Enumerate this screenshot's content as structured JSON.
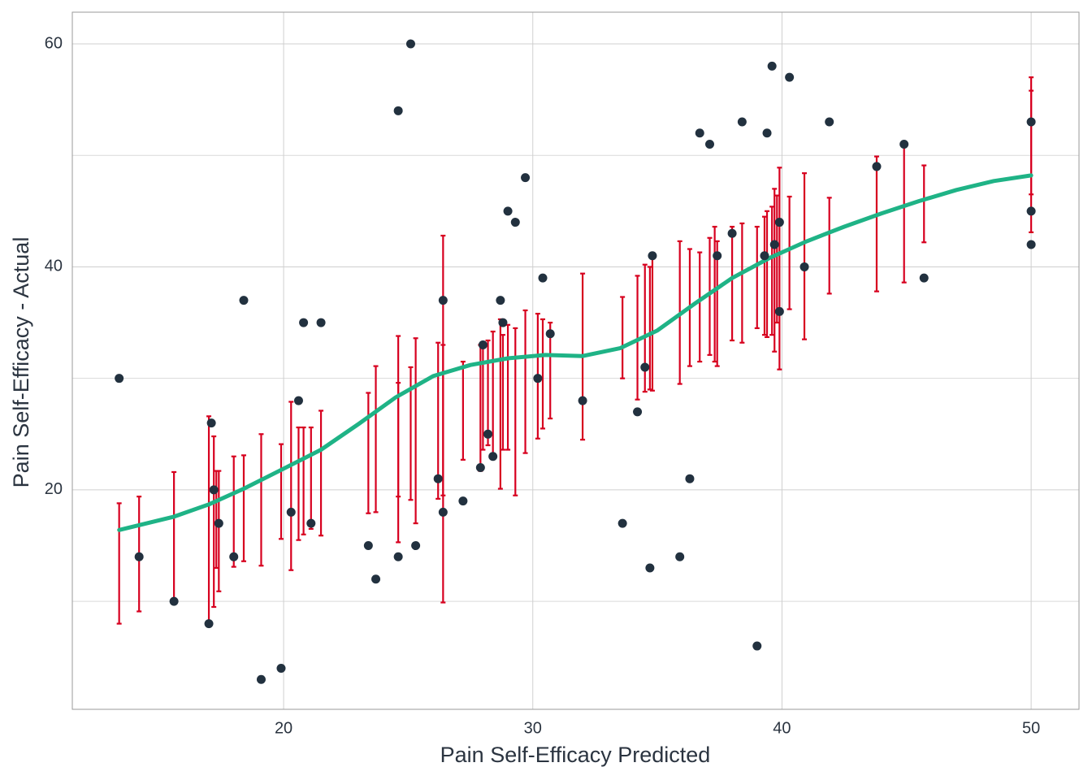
{
  "chart_data": {
    "type": "scatter",
    "x_label": "Pain Self-Efficacy Predicted",
    "y_label": "Pain Self-Efficacy - Actual",
    "xlim": [
      11.52,
      51.92
    ],
    "ylim": [
      0.32,
      62.84
    ],
    "xticks": [
      20,
      30,
      40,
      50
    ],
    "yticks": [
      20,
      40,
      60
    ],
    "y_minor_ticks": [
      10,
      30,
      50
    ],
    "grid": true,
    "points": {
      "color": "#22313f",
      "x": [
        13.4,
        14.2,
        15.6,
        17.0,
        17.1,
        17.2,
        17.4,
        18.0,
        18.4,
        19.1,
        19.9,
        20.3,
        20.6,
        20.8,
        21.1,
        21.5,
        23.4,
        23.7,
        24.6,
        24.6,
        25.1,
        25.3,
        26.2,
        26.4,
        26.4,
        27.2,
        27.9,
        28.0,
        28.2,
        28.4,
        28.7,
        28.8,
        29.0,
        29.3,
        29.7,
        30.2,
        30.4,
        30.7,
        32.0,
        33.6,
        34.2,
        34.5,
        34.7,
        34.8,
        35.9,
        36.3,
        36.7,
        37.1,
        37.4,
        38.0,
        38.4,
        39.0,
        39.3,
        39.4,
        39.6,
        39.7,
        39.9,
        39.9,
        40.3,
        40.9,
        41.9,
        43.8,
        44.9,
        45.7,
        50,
        50,
        50
      ],
      "values": [
        30,
        14,
        10,
        8,
        26,
        20,
        17,
        14,
        37,
        3,
        4,
        18,
        28,
        35,
        17,
        35,
        15,
        12,
        14,
        54,
        60,
        15,
        21,
        37,
        18,
        19,
        22,
        33,
        25,
        23,
        37,
        35,
        45,
        44,
        48,
        30,
        39,
        34,
        28,
        17,
        27,
        31,
        13,
        41,
        14,
        21,
        52,
        51,
        41,
        43,
        53,
        6,
        41,
        52,
        58,
        42,
        44,
        36,
        57,
        40,
        53,
        49,
        51,
        39,
        53,
        45,
        42
      ]
    },
    "error_bars": {
      "color": "#d7001f",
      "x": [
        13.4,
        14.2,
        15.6,
        17.0,
        17.2,
        17.3,
        17.4,
        18.0,
        18.4,
        19.1,
        19.9,
        20.3,
        20.6,
        20.8,
        21.1,
        21.5,
        23.4,
        23.7,
        24.6,
        24.6,
        25.1,
        25.3,
        26.2,
        26.4,
        26.4,
        27.2,
        27.9,
        28.0,
        28.2,
        28.4,
        28.7,
        28.8,
        29.0,
        29.3,
        29.7,
        30.2,
        30.4,
        30.7,
        32.0,
        33.6,
        34.2,
        34.5,
        34.7,
        34.8,
        35.9,
        36.3,
        36.7,
        37.1,
        37.3,
        37.4,
        38.0,
        38.4,
        39.0,
        39.3,
        39.4,
        39.6,
        39.7,
        39.8,
        39.9,
        40.3,
        40.9,
        41.9,
        43.8,
        44.9,
        45.7,
        50,
        50
      ],
      "low": [
        8.0,
        9.1,
        9.9,
        7.8,
        9.5,
        13.0,
        10.9,
        13.1,
        13.6,
        13.2,
        15.6,
        12.8,
        15.5,
        16.0,
        16.5,
        15.9,
        17.9,
        18.0,
        15.3,
        19.4,
        19.1,
        17.0,
        19.2,
        9.9,
        19.5,
        22.7,
        21.7,
        23.6,
        24.0,
        23.0,
        20.1,
        23.6,
        23.6,
        19.5,
        23.3,
        24.6,
        25.5,
        26.4,
        24.5,
        30.0,
        28.1,
        28.8,
        29.0,
        28.9,
        29.5,
        31.1,
        31.5,
        32.1,
        31.5,
        31.1,
        33.4,
        33.2,
        34.5,
        33.9,
        33.7,
        33.9,
        32.4,
        35.0,
        30.8,
        36.2,
        33.5,
        37.6,
        37.8,
        38.6,
        42.2,
        43.1,
        46.5
      ],
      "high": [
        18.8,
        19.4,
        21.6,
        26.6,
        24.8,
        21.7,
        21.7,
        23.0,
        23.1,
        25.0,
        24.1,
        27.9,
        25.6,
        25.6,
        25.6,
        27.1,
        28.7,
        31.1,
        33.8,
        29.6,
        31.0,
        33.6,
        33.2,
        42.8,
        33.0,
        31.5,
        33.0,
        32.8,
        33.4,
        34.2,
        35.3,
        33.9,
        34.8,
        34.5,
        36.1,
        35.8,
        35.3,
        35.0,
        39.4,
        37.3,
        39.2,
        40.2,
        40.0,
        41.0,
        42.3,
        41.6,
        41.3,
        42.6,
        43.6,
        42.3,
        43.6,
        43.9,
        43.6,
        44.5,
        45.0,
        45.4,
        47.0,
        46.4,
        48.9,
        46.3,
        48.4,
        46.2,
        49.9,
        51.0,
        49.1,
        57.0,
        55.8
      ]
    },
    "smooth": {
      "color": "#1fb386",
      "x": [
        13.4,
        15.6,
        17.0,
        18.4,
        20.0,
        21.5,
        23.0,
        24.5,
        26.0,
        27.5,
        29.0,
        30.5,
        32.0,
        33.5,
        35.0,
        36.5,
        38.0,
        39.5,
        41.0,
        42.5,
        44.0,
        45.5,
        47.0,
        48.5,
        50.0
      ],
      "values": [
        16.4,
        17.6,
        18.7,
        20.1,
        21.9,
        23.6,
        25.9,
        28.3,
        30.2,
        31.2,
        31.8,
        32.1,
        32.0,
        32.7,
        34.3,
        36.7,
        39.0,
        40.8,
        42.3,
        43.6,
        44.8,
        45.9,
        46.9,
        47.7,
        48.2
      ]
    }
  }
}
